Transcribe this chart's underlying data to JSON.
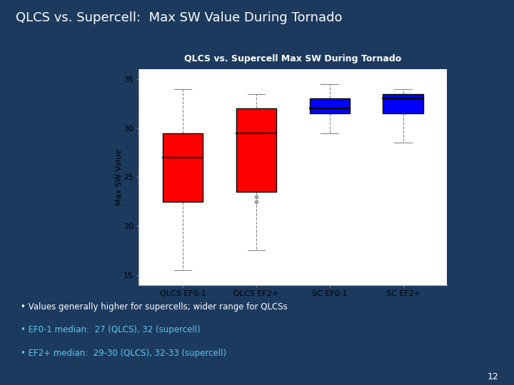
{
  "title_main": "QLCS vs. Supercell:  Max SW Value During Tornado",
  "chart_title": "QLCS vs. Supercell Max SW During Tornado",
  "ylabel": "Max SW Value",
  "categories": [
    "QLCS EF0-1",
    "QLCS EF2+",
    "SC EF0-1",
    "SC EF2+"
  ],
  "box_data": [
    {
      "whisker_low": 15.5,
      "q1": 22.5,
      "median": 27.0,
      "q3": 29.5,
      "whisker_high": 34.0,
      "outliers": []
    },
    {
      "whisker_low": 17.5,
      "q1": 23.5,
      "median": 29.5,
      "q3": 32.0,
      "whisker_high": 33.5,
      "outliers": [
        22.5,
        23.0
      ]
    },
    {
      "whisker_low": 29.5,
      "q1": 31.5,
      "median": 32.0,
      "q3": 33.0,
      "whisker_high": 34.5,
      "outliers": []
    },
    {
      "whisker_low": 28.5,
      "q1": 31.5,
      "median": 33.0,
      "q3": 33.5,
      "whisker_high": 34.0,
      "outliers": []
    }
  ],
  "colors": [
    "red",
    "red",
    "blue",
    "blue"
  ],
  "ylim": [
    14,
    36
  ],
  "yticks": [
    15,
    20,
    25,
    30,
    35
  ],
  "background_slide": "#1c3a5e",
  "chart_bg": "#ffffff",
  "chart_title_bg": "#000000",
  "chart_title_color": "#ffffff",
  "bullet_color": "#5bc8f5",
  "bullet_white": "#ffffff",
  "bullets": [
    "Values generally higher for supercells; wider range for QLCSs",
    "EF0-1 median:  27 (QLCS), 32 (supercell)",
    "EF2+ median:  29-30 (QLCS), 32-33 (supercell)"
  ],
  "page_number": "12"
}
